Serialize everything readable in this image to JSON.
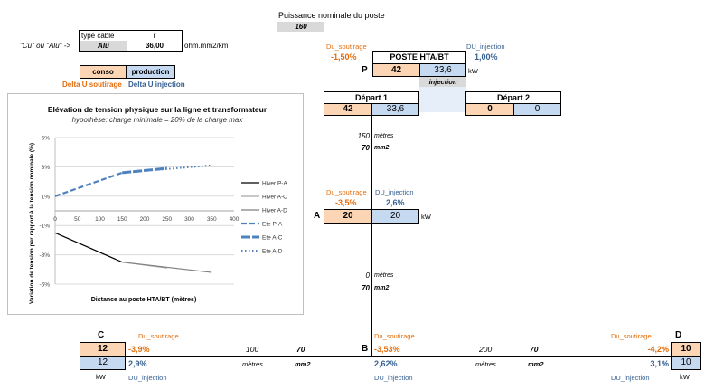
{
  "header": {
    "puissance_label": "Puissance nominale du poste",
    "puissance_value": "160"
  },
  "cable": {
    "hint": "\"Cu\" ou \"Alu\" ->",
    "type_label": "type câble",
    "type_value": "Alu",
    "r_label": "r",
    "r_value": "36,00",
    "r_unit": "ohm.mm2/km"
  },
  "legend_boxes": {
    "conso": "conso",
    "production": "production",
    "delta_soutirage": "Delta U soutirage",
    "delta_injection": "Delta U injection"
  },
  "poste": {
    "title": "POSTE HTA/BT",
    "letter": "P",
    "du_soutirage_label": "Du_soutirage",
    "du_soutirage_value": "-1,50%",
    "du_injection_label": "DU_injection",
    "du_injection_value": "1,00%",
    "conso": "42",
    "production": "33,6",
    "unit": "kW",
    "injection_label": "injection"
  },
  "depart1": {
    "title": "Départ 1",
    "conso": "42",
    "production": "33,6"
  },
  "depart2": {
    "title": "Départ 2",
    "conso": "0",
    "production": "0"
  },
  "segment_PA": {
    "length": "150",
    "length_unit": "mètres",
    "section": "70",
    "section_unit": "mm2"
  },
  "node_A": {
    "letter": "A",
    "du_soutirage_label": "Du_soutirage",
    "du_soutirage_value": "-3,5%",
    "du_injection_label": "DU_injection",
    "du_injection_value": "2,6%",
    "conso": "20",
    "production": "20",
    "unit": "kW"
  },
  "segment_AB": {
    "length": "0",
    "length_unit": "mètres",
    "section": "70",
    "section_unit": "mm2"
  },
  "node_C": {
    "letter": "C",
    "du_soutirage_label": "Du_soutirage",
    "du_soutirage_value": "-3,9%",
    "du_injection_label": "DU_injection",
    "du_injection_value": "2,9%",
    "conso": "12",
    "production": "12",
    "unit": "kW"
  },
  "segment_BC": {
    "length": "100",
    "length_unit": "mètres",
    "section": "70",
    "section_unit": "mm2"
  },
  "node_B": {
    "letter": "B",
    "du_soutirage_label": "Du_soutirage",
    "du_soutirage_value": "-3,53%",
    "du_injection_label": "DU_injection",
    "du_injection_value": "2,62%"
  },
  "segment_BD": {
    "length": "200",
    "length_unit": "mètres",
    "section": "70",
    "section_unit": "mm2"
  },
  "node_D": {
    "letter": "D",
    "du_soutirage_label": "Du_soutirage",
    "du_soutirage_value": "-4,2%",
    "du_injection_label": "DU_injection",
    "du_injection_value": "3,1%",
    "conso": "10",
    "production": "10",
    "unit": "kW"
  },
  "colors": {
    "conso": "#fcd5b4",
    "production": "#c5d9f1",
    "soutirage_text": "#e46c0a",
    "injection_text": "#366092"
  },
  "chart_data": {
    "type": "line",
    "title": "Elévation de tension physique sur la ligne et transformateur",
    "subtitle": "hypothèse: charge minimale = 20% de la charge max",
    "xlabel": "Distance au poste HTA/BT (mètres)",
    "ylabel": "Variation de tension par rapport à la tension nominale (%)",
    "xlim": [
      0,
      400
    ],
    "ylim": [
      -5,
      5
    ],
    "x_ticks": [
      "0",
      "50",
      "100",
      "150",
      "200",
      "250",
      "300",
      "350",
      "400"
    ],
    "y_ticks": [
      "5%",
      "3%",
      "1%",
      "-1%",
      "-3%",
      "-5%"
    ],
    "y_tick_values": [
      5,
      3,
      1,
      -1,
      -3,
      -5
    ],
    "grid": true,
    "legend_position": "right",
    "series": [
      {
        "name": "Hiver P-A",
        "x": [
          0,
          150
        ],
        "y": [
          -1.5,
          -3.5
        ],
        "color": "#000000",
        "dash": "solid"
      },
      {
        "name": "Hiver A-C",
        "x": [
          150,
          250
        ],
        "y": [
          -3.5,
          -3.9
        ],
        "color": "#a6a6a6",
        "dash": "solid"
      },
      {
        "name": "Hiver A-D",
        "x": [
          150,
          350
        ],
        "y": [
          -3.5,
          -4.2
        ],
        "color": "#7f7f7f",
        "dash": "solid"
      },
      {
        "name": "Ete P-A",
        "x": [
          0,
          150
        ],
        "y": [
          1.0,
          2.6
        ],
        "color": "#4f81bd",
        "dash": "dash"
      },
      {
        "name": "Ete A-C",
        "x": [
          150,
          250
        ],
        "y": [
          2.6,
          2.9
        ],
        "color": "#4f81bd",
        "dash": "longdash"
      },
      {
        "name": "Ete A-D",
        "x": [
          150,
          350
        ],
        "y": [
          2.6,
          3.1
        ],
        "color": "#4f81bd",
        "dash": "dot"
      }
    ]
  }
}
